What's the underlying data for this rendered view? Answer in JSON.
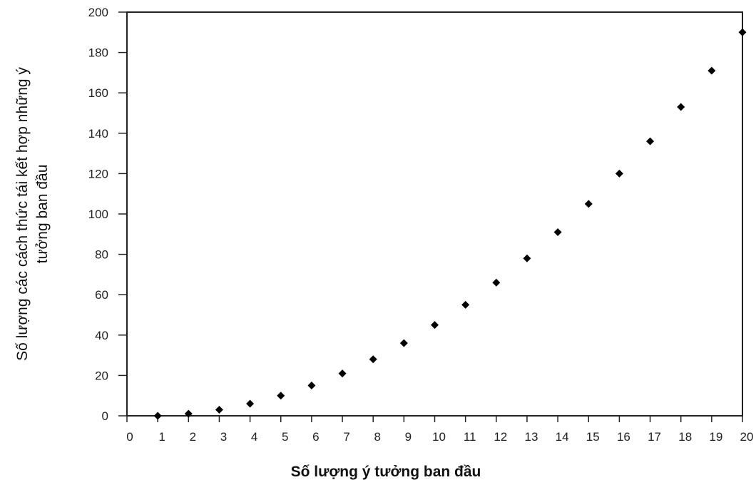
{
  "chart_data": {
    "type": "scatter",
    "title": "",
    "xlabel": "Số lượng ý tưởng ban đầu",
    "ylabel_lines": [
      "Số lượng các cách thức tái kết hợp những ý",
      "tưởng ban đầu"
    ],
    "xlim": [
      0,
      20
    ],
    "ylim": [
      0,
      200
    ],
    "x_ticks": [
      "0",
      "1",
      "2",
      "3",
      "4",
      "5",
      "6",
      "7",
      "8",
      "9",
      "10",
      "11",
      "12",
      "13",
      "14",
      "15",
      "16",
      "17",
      "18",
      "19",
      "20"
    ],
    "y_ticks": [
      "0",
      "20",
      "40",
      "60",
      "80",
      "100",
      "120",
      "140",
      "160",
      "180",
      "200"
    ],
    "grid": false,
    "legend": "none",
    "marker": "diamond",
    "marker_color": "#000000",
    "series": [
      {
        "x": [
          1,
          2,
          3,
          4,
          5,
          6,
          7,
          8,
          9,
          10,
          11,
          12,
          13,
          14,
          15,
          16,
          17,
          18,
          19,
          20
        ],
        "y": [
          0,
          1,
          3,
          6,
          10,
          15,
          21,
          28,
          36,
          45,
          55,
          66,
          78,
          91,
          105,
          120,
          136,
          153,
          171,
          190
        ]
      }
    ]
  }
}
